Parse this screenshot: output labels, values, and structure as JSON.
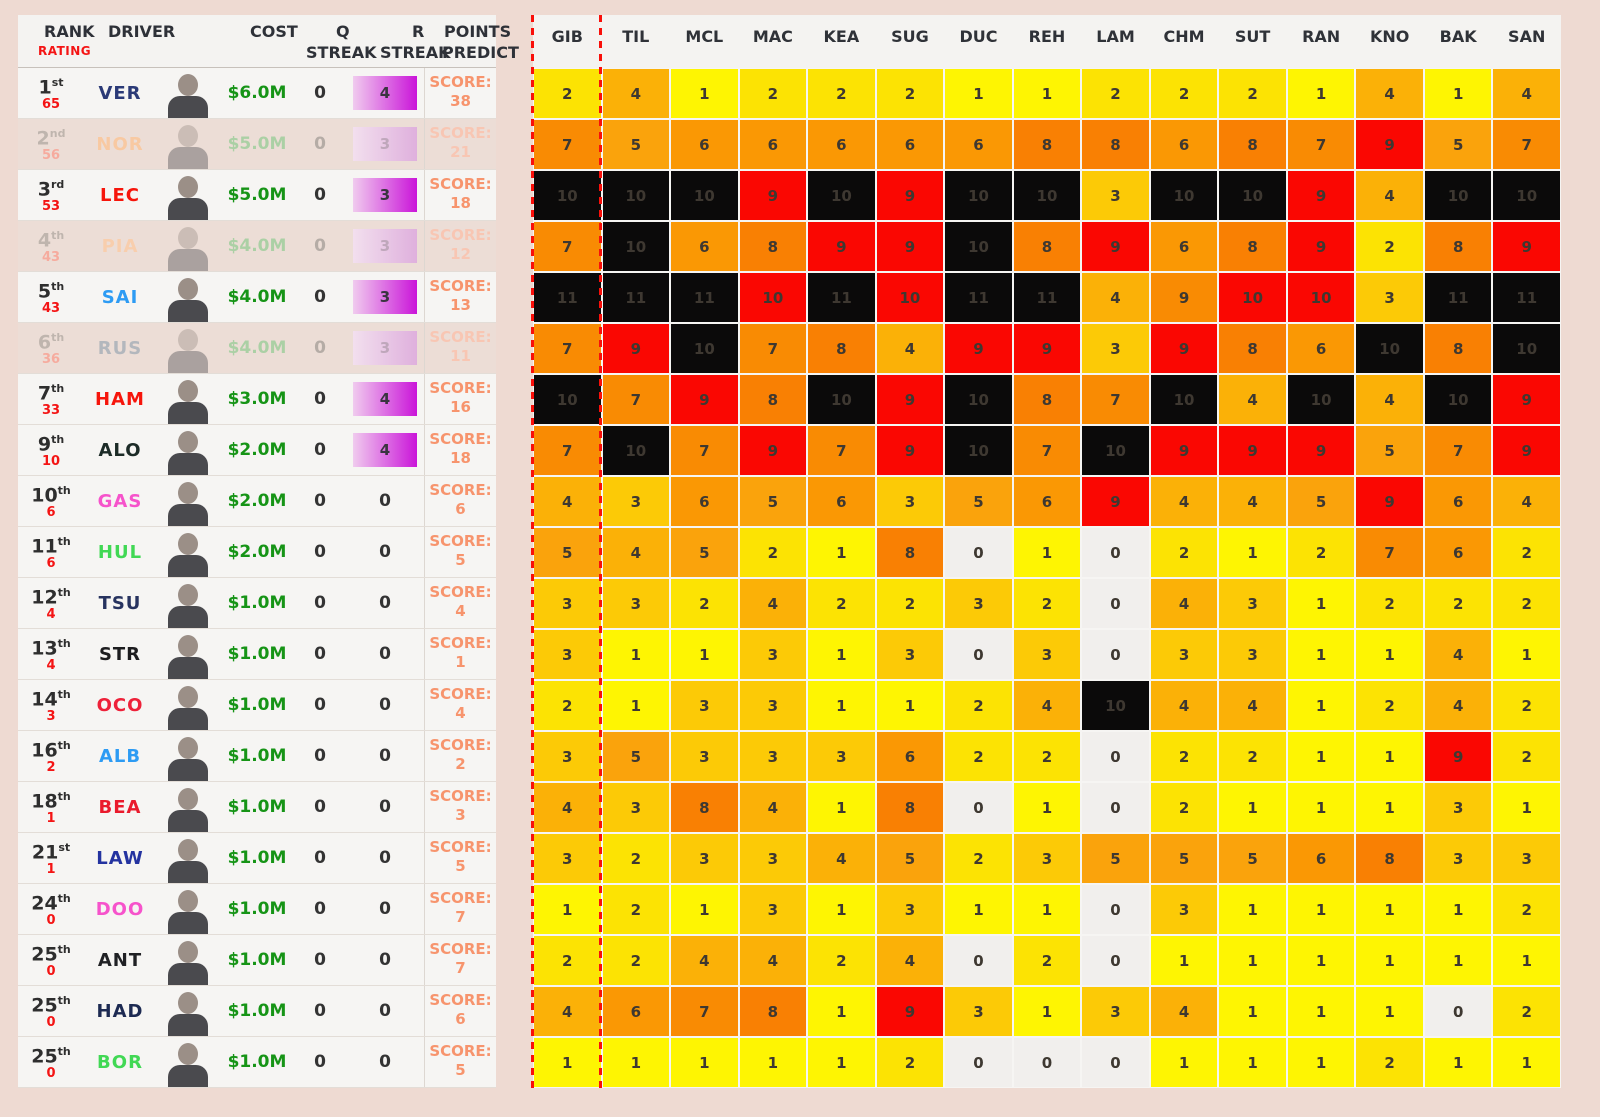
{
  "palette": {
    "page_bg": "#eedad2",
    "panel_bg": "#f6f5f3",
    "header_bg": "#f4f3f1",
    "faded_row_bg": "#ecddd6",
    "rating_red": "#f41414",
    "cost_green": "#169416",
    "score_orange": "#f7946d",
    "dashed_line_red": "#f90f0a",
    "pill_gradient": [
      "#f0cbee",
      "#ca15d9"
    ],
    "heat_text": "#3e3831",
    "heat_scale": {
      "0": "#f1efed",
      "1": "#fef502",
      "2": "#fce303",
      "3": "#fcca06",
      "4": "#fbb107",
      "5": "#faa30c",
      "6": "#fa9804",
      "7": "#f98b03",
      "8": "#f98003",
      "9": "#fa0702",
      "10": "#0b0a0a",
      "11": "#0b0a0a"
    },
    "heat_overrides": {
      "r": "#fa0702",
      "k": "#0b0a0a",
      "o": "#f98b03"
    }
  },
  "left_table": {
    "headers": {
      "rank": "RANK",
      "rating": "RATING",
      "driver": "DRIVER",
      "cost": "COST",
      "q": "Q",
      "q_streak": "STREAK",
      "r": "R",
      "r_streak": "STREAK",
      "points": "POINTS",
      "predict": "PREDICT"
    },
    "score_label": "SCORE:",
    "rows": [
      {
        "rank": "1",
        "ord": "st",
        "rating": "65",
        "driver": "VER",
        "driver_color": "#2b3a77",
        "cost": "$6.0M",
        "q": "0",
        "r": "4",
        "r_pill": true,
        "score": "38",
        "faded": false
      },
      {
        "rank": "2",
        "ord": "nd",
        "rating": "56",
        "driver": "NOR",
        "driver_color": "#f8c9a2",
        "cost": "$5.0M",
        "q": "0",
        "r": "3",
        "r_pill": true,
        "score": "21",
        "faded": true
      },
      {
        "rank": "3",
        "ord": "rd",
        "rating": "53",
        "driver": "LEC",
        "driver_color": "#f6150b",
        "cost": "$5.0M",
        "q": "0",
        "r": "3",
        "r_pill": true,
        "score": "18",
        "faded": false
      },
      {
        "rank": "4",
        "ord": "th",
        "rating": "43",
        "driver": "PIA",
        "driver_color": "#f8cead",
        "cost": "$4.0M",
        "q": "0",
        "r": "3",
        "r_pill": true,
        "score": "12",
        "faded": true
      },
      {
        "rank": "5",
        "ord": "th",
        "rating": "43",
        "driver": "SAI",
        "driver_color": "#2d9bf3",
        "cost": "$4.0M",
        "q": "0",
        "r": "3",
        "r_pill": true,
        "score": "13",
        "faded": false
      },
      {
        "rank": "6",
        "ord": "th",
        "rating": "36",
        "driver": "RUS",
        "driver_color": "#b3b7bd",
        "cost": "$4.0M",
        "q": "0",
        "r": "3",
        "r_pill": true,
        "score": "11",
        "faded": true
      },
      {
        "rank": "7",
        "ord": "th",
        "rating": "33",
        "driver": "HAM",
        "driver_color": "#f6150b",
        "cost": "$3.0M",
        "q": "0",
        "r": "4",
        "r_pill": true,
        "score": "16",
        "faded": false
      },
      {
        "rank": "9",
        "ord": "th",
        "rating": "10",
        "driver": "ALO",
        "driver_color": "#1c2b27",
        "cost": "$2.0M",
        "q": "0",
        "r": "4",
        "r_pill": true,
        "score": "18",
        "faded": false
      },
      {
        "rank": "10",
        "ord": "th",
        "rating": "6",
        "driver": "GAS",
        "driver_color": "#f653cb",
        "cost": "$2.0M",
        "q": "0",
        "r": "0",
        "r_pill": false,
        "score": "6",
        "faded": false
      },
      {
        "rank": "11",
        "ord": "th",
        "rating": "6",
        "driver": "HUL",
        "driver_color": "#41d854",
        "cost": "$2.0M",
        "q": "0",
        "r": "0",
        "r_pill": false,
        "score": "5",
        "faded": false
      },
      {
        "rank": "12",
        "ord": "th",
        "rating": "4",
        "driver": "TSU",
        "driver_color": "#27335f",
        "cost": "$1.0M",
        "q": "0",
        "r": "0",
        "r_pill": false,
        "score": "4",
        "faded": false
      },
      {
        "rank": "13",
        "ord": "th",
        "rating": "4",
        "driver": "STR",
        "driver_color": "#1d1d1f",
        "cost": "$1.0M",
        "q": "0",
        "r": "0",
        "r_pill": false,
        "score": "1",
        "faded": false
      },
      {
        "rank": "14",
        "ord": "th",
        "rating": "3",
        "driver": "OCO",
        "driver_color": "#ee2139",
        "cost": "$1.0M",
        "q": "0",
        "r": "0",
        "r_pill": false,
        "score": "4",
        "faded": false
      },
      {
        "rank": "16",
        "ord": "th",
        "rating": "2",
        "driver": "ALB",
        "driver_color": "#2d9bf3",
        "cost": "$1.0M",
        "q": "0",
        "r": "0",
        "r_pill": false,
        "score": "2",
        "faded": false
      },
      {
        "rank": "18",
        "ord": "th",
        "rating": "1",
        "driver": "BEA",
        "driver_color": "#ea1a2c",
        "cost": "$1.0M",
        "q": "0",
        "r": "0",
        "r_pill": false,
        "score": "3",
        "faded": false
      },
      {
        "rank": "21",
        "ord": "st",
        "rating": "1",
        "driver": "LAW",
        "driver_color": "#2433a0",
        "cost": "$1.0M",
        "q": "0",
        "r": "0",
        "r_pill": false,
        "score": "5",
        "faded": false
      },
      {
        "rank": "24",
        "ord": "th",
        "rating": "0",
        "driver": "DOO",
        "driver_color": "#f653cb",
        "cost": "$1.0M",
        "q": "0",
        "r": "0",
        "r_pill": false,
        "score": "7",
        "faded": false
      },
      {
        "rank": "25",
        "ord": "th",
        "rating": "0",
        "driver": "ANT",
        "driver_color": "#202124",
        "cost": "$1.0M",
        "q": "0",
        "r": "0",
        "r_pill": false,
        "score": "7",
        "faded": false
      },
      {
        "rank": "25",
        "ord": "th",
        "rating": "0",
        "driver": "HAD",
        "driver_color": "#1d2a52",
        "cost": "$1.0M",
        "q": "0",
        "r": "0",
        "r_pill": false,
        "score": "6",
        "faded": false
      },
      {
        "rank": "25",
        "ord": "th",
        "rating": "0",
        "driver": "BOR",
        "driver_color": "#41d854",
        "cost": "$1.0M",
        "q": "0",
        "r": "0",
        "r_pill": false,
        "score": "5",
        "faded": false
      }
    ]
  },
  "chart_data": {
    "type": "heatmap",
    "title": "",
    "columns": [
      "GIB",
      "TIL",
      "MCL",
      "MAC",
      "KEA",
      "SUG",
      "DUC",
      "REH",
      "LAM",
      "CHM",
      "SUT",
      "RAN",
      "KNO",
      "BAK",
      "SAN"
    ],
    "row_labels": [
      "VER",
      "NOR",
      "LEC",
      "PIA",
      "SAI",
      "RUS",
      "HAM",
      "ALO",
      "GAS",
      "HUL",
      "TSU",
      "STR",
      "OCO",
      "ALB",
      "BEA",
      "LAW",
      "DOO",
      "ANT",
      "HAD",
      "BOR"
    ],
    "cell_note": "value = predicted position; suffix r=red, k=black, o=orange color override; plain values colored by heat_scale",
    "rows": [
      [
        "2",
        "4",
        "1",
        "2",
        "2",
        "2",
        "1",
        "1",
        "2",
        "2",
        "2",
        "1",
        "4",
        "1",
        "4"
      ],
      [
        "7",
        "5",
        "6",
        "6",
        "6",
        "6",
        "6",
        "8",
        "8",
        "6",
        "8",
        "7",
        "9",
        "5",
        "7"
      ],
      [
        "10",
        "10",
        "10",
        "9",
        "10",
        "9",
        "10",
        "10",
        "3",
        "10",
        "10",
        "9",
        "4",
        "10",
        "10"
      ],
      [
        "7",
        "10",
        "6",
        "8",
        "9",
        "9",
        "10",
        "8",
        "9",
        "6",
        "8",
        "9",
        "2",
        "8",
        "9"
      ],
      [
        "11",
        "11",
        "11",
        "10r",
        "11",
        "10r",
        "11",
        "11",
        "4",
        "9o",
        "10r",
        "10r",
        "3",
        "11",
        "11"
      ],
      [
        "7",
        "9",
        "10",
        "7",
        "8",
        "4",
        "9",
        "9",
        "3",
        "9",
        "8",
        "6",
        "10",
        "8",
        "10"
      ],
      [
        "10",
        "7",
        "9",
        "8",
        "10",
        "9",
        "10",
        "8",
        "7",
        "10",
        "4",
        "10",
        "4",
        "10",
        "9"
      ],
      [
        "7",
        "10",
        "7",
        "9",
        "7",
        "9",
        "10",
        "7",
        "10",
        "9",
        "9",
        "9",
        "5",
        "7",
        "9"
      ],
      [
        "4",
        "3",
        "6",
        "5",
        "6",
        "3",
        "5",
        "6",
        "9",
        "4",
        "4",
        "5",
        "9",
        "6",
        "4"
      ],
      [
        "5",
        "4",
        "5",
        "2",
        "1",
        "8",
        "0",
        "1",
        "0",
        "2",
        "1",
        "2",
        "7",
        "6",
        "2"
      ],
      [
        "3",
        "3",
        "2",
        "4",
        "2",
        "2",
        "3",
        "2",
        "0",
        "4",
        "3",
        "1",
        "2",
        "2",
        "2"
      ],
      [
        "3",
        "1",
        "1",
        "3",
        "1",
        "3",
        "0",
        "3",
        "0",
        "3",
        "3",
        "1",
        "1",
        "4",
        "1"
      ],
      [
        "2",
        "1",
        "3",
        "3",
        "1",
        "1",
        "2",
        "4",
        "10",
        "4",
        "4",
        "1",
        "2",
        "4",
        "2"
      ],
      [
        "3",
        "5",
        "3",
        "3",
        "3",
        "6",
        "2",
        "2",
        "0",
        "2",
        "2",
        "1",
        "1",
        "9",
        "2"
      ],
      [
        "4",
        "3",
        "8",
        "4",
        "1",
        "8",
        "0",
        "1",
        "0",
        "2",
        "1",
        "1",
        "1",
        "3",
        "1"
      ],
      [
        "3",
        "2",
        "3",
        "3",
        "4",
        "5",
        "2",
        "3",
        "5",
        "5",
        "5",
        "6",
        "8",
        "3",
        "3"
      ],
      [
        "1",
        "2",
        "1",
        "3",
        "1",
        "3",
        "1",
        "1",
        "0",
        "3",
        "1",
        "1",
        "1",
        "1",
        "2"
      ],
      [
        "2",
        "2",
        "4",
        "4",
        "2",
        "4",
        "0",
        "2",
        "0",
        "1",
        "1",
        "1",
        "1",
        "1",
        "1"
      ],
      [
        "4",
        "6",
        "7",
        "8",
        "1",
        "9",
        "3",
        "1",
        "3",
        "4",
        "1",
        "1",
        "1",
        "0",
        "2"
      ],
      [
        "1",
        "1",
        "1",
        "1",
        "1",
        "2",
        "0",
        "0",
        "0",
        "1",
        "1",
        "1",
        "2",
        "1",
        "1"
      ]
    ]
  }
}
